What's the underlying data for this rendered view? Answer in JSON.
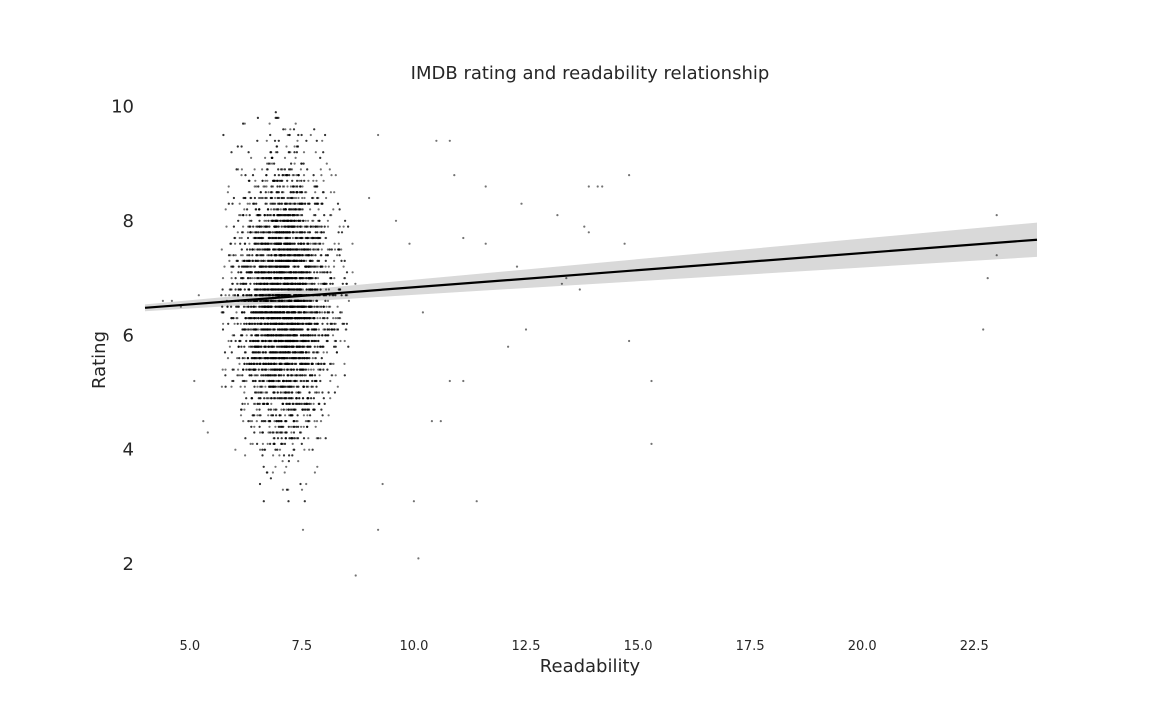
{
  "chart_data": {
    "type": "scatter",
    "title": "IMDB rating and readability relationship",
    "xlabel": "Readability",
    "ylabel": "Rating",
    "xlim": [
      4.0,
      23.9
    ],
    "ylim": [
      0.9,
      10.2
    ],
    "xticks": [
      "5.0",
      "7.5",
      "10.0",
      "12.5",
      "15.0",
      "17.5",
      "20.0",
      "22.5"
    ],
    "yticks": [
      "2",
      "4",
      "6",
      "8",
      "10"
    ],
    "grid": false,
    "legend": "none",
    "colors": {
      "points": "#000000",
      "regression_line": "#000000",
      "confidence_band": "#d9d9d9",
      "background": "#ffffff"
    },
    "core_distribution": {
      "x_center": 7.1,
      "x_spread": 0.55,
      "y_center": 6.6,
      "y_spread": 1.15,
      "y_range": [
        1.4,
        9.9
      ],
      "approx_points": 6000
    },
    "outliers": [
      [
        10.5,
        9.4
      ],
      [
        10.8,
        9.4
      ],
      [
        10.9,
        8.8
      ],
      [
        11.1,
        7.7
      ],
      [
        11.6,
        8.6
      ],
      [
        12.4,
        8.3
      ],
      [
        12.3,
        7.2
      ],
      [
        12.5,
        6.1
      ],
      [
        12.1,
        5.8
      ],
      [
        11.6,
        7.6
      ],
      [
        11.1,
        5.2
      ],
      [
        10.8,
        5.2
      ],
      [
        10.4,
        4.5
      ],
      [
        10.6,
        4.5
      ],
      [
        11.4,
        3.1
      ],
      [
        9.0,
        8.4
      ],
      [
        9.2,
        9.5
      ],
      [
        9.6,
        8.0
      ],
      [
        9.9,
        7.6
      ],
      [
        10.2,
        6.4
      ],
      [
        10.0,
        3.1
      ],
      [
        10.1,
        2.1
      ],
      [
        9.3,
        3.4
      ],
      [
        9.2,
        2.6
      ],
      [
        8.7,
        1.8
      ],
      [
        13.2,
        8.1
      ],
      [
        13.4,
        7.0
      ],
      [
        13.3,
        6.9
      ],
      [
        13.8,
        7.9
      ],
      [
        13.9,
        7.8
      ],
      [
        13.9,
        8.6
      ],
      [
        14.1,
        8.6
      ],
      [
        14.2,
        8.6
      ],
      [
        13.7,
        6.8
      ],
      [
        14.7,
        7.6
      ],
      [
        14.8,
        8.8
      ],
      [
        14.8,
        5.9
      ],
      [
        15.3,
        5.2
      ],
      [
        15.3,
        4.1
      ],
      [
        23.0,
        8.1
      ],
      [
        23.0,
        7.4
      ],
      [
        22.8,
        7.0
      ],
      [
        22.7,
        6.1
      ],
      [
        4.4,
        6.6
      ],
      [
        4.6,
        6.6
      ],
      [
        4.8,
        6.5
      ],
      [
        5.2,
        6.7
      ],
      [
        5.1,
        5.2
      ],
      [
        5.3,
        4.5
      ],
      [
        5.4,
        4.3
      ]
    ],
    "regression": {
      "x": [
        4.0,
        23.9
      ],
      "y": [
        6.48,
        7.67
      ],
      "ci_lower": [
        6.42,
        7.37
      ],
      "ci_upper": [
        6.54,
        7.97
      ]
    }
  }
}
